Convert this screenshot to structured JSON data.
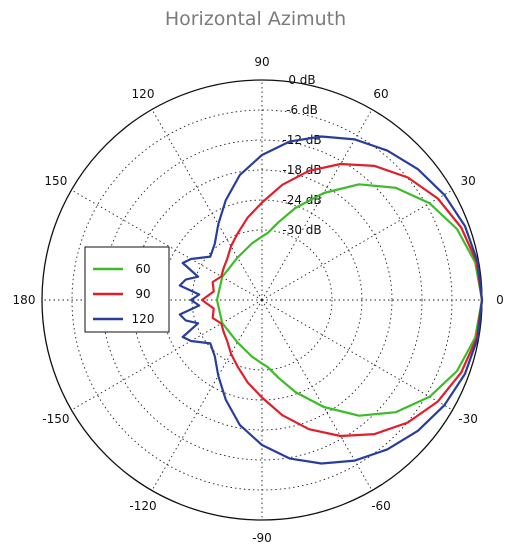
{
  "chart_data": {
    "type": "line",
    "title": "Horizontal Azimuth",
    "coordinate_system": "polar",
    "angle_ticks": [
      {
        "angle": 0,
        "label": "0"
      },
      {
        "angle": 30,
        "label": "30"
      },
      {
        "angle": 60,
        "label": "60"
      },
      {
        "angle": 90,
        "label": "90"
      },
      {
        "angle": 120,
        "label": "120"
      },
      {
        "angle": 150,
        "label": "150"
      },
      {
        "angle": 180,
        "label": "180"
      },
      {
        "angle": -150,
        "label": "-150"
      },
      {
        "angle": -120,
        "label": "-120"
      },
      {
        "angle": -90,
        "label": "-90"
      },
      {
        "angle": -60,
        "label": "-60"
      },
      {
        "angle": -30,
        "label": "-30"
      }
    ],
    "radial_ticks": [
      {
        "value": 0,
        "label": "0 dB"
      },
      {
        "value": -6,
        "label": "-6 dB"
      },
      {
        "value": -12,
        "label": "-12 dB"
      },
      {
        "value": -18,
        "label": "-18 dB"
      },
      {
        "value": -24,
        "label": "-24 dB"
      },
      {
        "value": -30,
        "label": "-30 dB"
      }
    ],
    "radial_range": [
      -36,
      0
    ],
    "grid": true,
    "legend": {
      "placement": "left",
      "entries": [
        {
          "label": "60",
          "color": "#3cbc27"
        },
        {
          "label": "90",
          "color": "#e11f2b"
        },
        {
          "label": "120",
          "color": "#283e9a"
        }
      ]
    },
    "series": [
      {
        "name": "60",
        "color": "#3cbc27",
        "points": [
          [
            0,
            0
          ],
          [
            10,
            -0.7
          ],
          [
            20,
            -2.5
          ],
          [
            30,
            -5.3
          ],
          [
            40,
            -9.1
          ],
          [
            50,
            -13.8
          ],
          [
            60,
            -19.3
          ],
          [
            70,
            -24.4
          ],
          [
            78,
            -28.1
          ],
          [
            85,
            -30.5
          ],
          [
            90,
            -31.3
          ],
          [
            100,
            -32.5
          ],
          [
            120,
            -34.2
          ],
          [
            150,
            -34.8
          ],
          [
            180,
            -35.0
          ],
          [
            -150,
            -34.8
          ],
          [
            -120,
            -34.2
          ],
          [
            -100,
            -32.5
          ],
          [
            -90,
            -31.3
          ],
          [
            -85,
            -30.5
          ],
          [
            -78,
            -28.1
          ],
          [
            -70,
            -24.4
          ],
          [
            -60,
            -19.3
          ],
          [
            -50,
            -13.8
          ],
          [
            -40,
            -9.1
          ],
          [
            -30,
            -5.3
          ],
          [
            -20,
            -2.5
          ],
          [
            -10,
            -0.7
          ]
        ]
      },
      {
        "name": "90",
        "color": "#e11f2b",
        "points": [
          [
            0,
            0
          ],
          [
            10,
            -0.4
          ],
          [
            20,
            -1.6
          ],
          [
            30,
            -3.4
          ],
          [
            40,
            -5.9
          ],
          [
            50,
            -9.0
          ],
          [
            60,
            -12.6
          ],
          [
            70,
            -16.5
          ],
          [
            80,
            -20.6
          ],
          [
            90,
            -24.5
          ],
          [
            100,
            -27.3
          ],
          [
            110,
            -29.8
          ],
          [
            120,
            -31.6
          ],
          [
            130,
            -33.2
          ],
          [
            140,
            -34.0
          ],
          [
            150,
            -34.6
          ],
          [
            160,
            -33.5
          ],
          [
            170,
            -34.2
          ],
          [
            180,
            -32.0
          ],
          [
            -170,
            -34.2
          ],
          [
            -160,
            -33.5
          ],
          [
            -150,
            -34.6
          ],
          [
            -140,
            -34.0
          ],
          [
            -130,
            -33.2
          ],
          [
            -120,
            -31.6
          ],
          [
            -110,
            -29.8
          ],
          [
            -100,
            -27.3
          ],
          [
            -90,
            -24.5
          ],
          [
            -80,
            -20.6
          ],
          [
            -70,
            -16.5
          ],
          [
            -60,
            -12.6
          ],
          [
            -50,
            -9.0
          ],
          [
            -40,
            -5.9
          ],
          [
            -30,
            -3.4
          ],
          [
            -20,
            -1.6
          ],
          [
            -10,
            -0.4
          ]
        ]
      },
      {
        "name": "120",
        "color": "#283e9a",
        "points": [
          [
            0,
            0
          ],
          [
            10,
            -0.2
          ],
          [
            20,
            -0.8
          ],
          [
            30,
            -1.9
          ],
          [
            40,
            -3.3
          ],
          [
            50,
            -5.0
          ],
          [
            60,
            -6.9
          ],
          [
            70,
            -9.2
          ],
          [
            80,
            -11.8
          ],
          [
            90,
            -15.0
          ],
          [
            100,
            -18.6
          ],
          [
            110,
            -22.8
          ],
          [
            120,
            -26.5
          ],
          [
            130,
            -29.3
          ],
          [
            140,
            -30.5
          ],
          [
            150,
            -27.6
          ],
          [
            155,
            -26.5
          ],
          [
            160,
            -30.4
          ],
          [
            165,
            -28.2
          ],
          [
            170,
            -27.3
          ],
          [
            175,
            -31.4
          ],
          [
            180,
            -29.8
          ],
          [
            -175,
            -31.4
          ],
          [
            -170,
            -27.3
          ],
          [
            -165,
            -28.2
          ],
          [
            -160,
            -30.4
          ],
          [
            -155,
            -26.5
          ],
          [
            -150,
            -27.6
          ],
          [
            -140,
            -30.5
          ],
          [
            -130,
            -29.3
          ],
          [
            -120,
            -26.5
          ],
          [
            -110,
            -22.8
          ],
          [
            -100,
            -18.6
          ],
          [
            -90,
            -15.0
          ],
          [
            -80,
            -11.8
          ],
          [
            -70,
            -9.2
          ],
          [
            -60,
            -6.9
          ],
          [
            -50,
            -5.0
          ],
          [
            -40,
            -3.3
          ],
          [
            -30,
            -1.9
          ],
          [
            -20,
            -0.8
          ],
          [
            -10,
            -0.2
          ]
        ]
      }
    ]
  }
}
